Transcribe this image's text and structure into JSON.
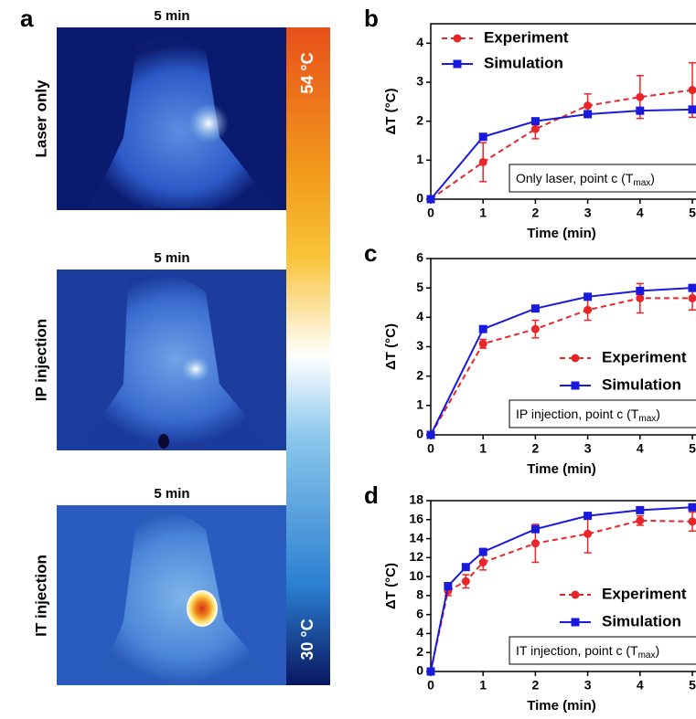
{
  "figure": {
    "panel": "a",
    "images": [
      {
        "time": "5 min",
        "label": "Laser only"
      },
      {
        "time": "5 min",
        "label": "IP injection"
      },
      {
        "time": "5 min",
        "label": "IT injection"
      }
    ],
    "colorbar": {
      "max": "54 °C",
      "min": "30 °C"
    }
  },
  "chart_data": [
    {
      "type": "line",
      "panel": "b",
      "xlabel": "Time (min)",
      "ylabel": "ΔT (°C)",
      "legend": "upper left",
      "annotation": {
        "text": "Only laser, point c (T",
        "sub": "max",
        "end": ")"
      },
      "x": [
        0,
        1,
        2,
        3,
        4,
        5
      ],
      "xlim": [
        0,
        5
      ],
      "xticks": [
        0,
        1,
        2,
        3,
        4,
        5
      ],
      "ylim": [
        0,
        4.5
      ],
      "yticks": [
        0,
        1,
        2,
        3,
        4
      ],
      "series": [
        {
          "name": "Experiment",
          "color": "#e8262a",
          "marker": "circle",
          "dashed": true,
          "values": [
            0,
            0.95,
            1.8,
            2.4,
            2.62,
            2.8
          ],
          "errors": [
            0,
            0.5,
            0.25,
            0.3,
            0.55,
            0.7
          ]
        },
        {
          "name": "Simulation",
          "color": "#1a1adc",
          "marker": "square",
          "dashed": false,
          "values": [
            0,
            1.6,
            2.0,
            2.18,
            2.27,
            2.3
          ]
        }
      ]
    },
    {
      "type": "line",
      "panel": "c",
      "xlabel": "Time (min)",
      "ylabel": "ΔT (°C)",
      "legend": "lower right",
      "annotation": {
        "text": "IP injection, point c (T",
        "sub": "max",
        "end": ")"
      },
      "x": [
        0,
        1,
        2,
        3,
        4,
        5
      ],
      "xlim": [
        0,
        5
      ],
      "xticks": [
        0,
        1,
        2,
        3,
        4,
        5
      ],
      "ylim": [
        0,
        6
      ],
      "yticks": [
        0,
        1,
        2,
        3,
        4,
        5,
        6
      ],
      "series": [
        {
          "name": "Experiment",
          "color": "#e8262a",
          "marker": "circle",
          "dashed": true,
          "values": [
            0,
            3.1,
            3.6,
            4.25,
            4.65,
            4.65
          ],
          "errors": [
            0,
            0.15,
            0.3,
            0.35,
            0.5,
            0.4
          ]
        },
        {
          "name": "Simulation",
          "color": "#1a1adc",
          "marker": "square",
          "dashed": false,
          "values": [
            0,
            3.6,
            4.3,
            4.7,
            4.9,
            5.0
          ]
        }
      ]
    },
    {
      "type": "line",
      "panel": "d",
      "xlabel": "Time (min)",
      "ylabel": "ΔT (°C)",
      "legend": "lower right",
      "annotation": {
        "text": "IT injection, point c (T",
        "sub": "max",
        "end": ")"
      },
      "x": [
        0,
        0.33,
        0.67,
        1,
        2,
        3,
        4,
        5
      ],
      "xlim": [
        0,
        5
      ],
      "xticks": [
        0,
        1,
        2,
        3,
        4,
        5
      ],
      "ylim": [
        0,
        18
      ],
      "yticks": [
        0,
        2,
        4,
        6,
        8,
        10,
        12,
        14,
        16,
        18
      ],
      "series": [
        {
          "name": "Experiment",
          "color": "#e8262a",
          "marker": "circle",
          "dashed": true,
          "values": [
            0,
            8.5,
            9.5,
            11.5,
            13.5,
            14.5,
            15.9,
            15.8
          ],
          "errors": [
            0,
            0.5,
            0.7,
            0.8,
            2,
            2,
            0.5,
            1
          ]
        },
        {
          "name": "Simulation",
          "color": "#1a1adc",
          "marker": "square",
          "dashed": false,
          "values": [
            0,
            9,
            11,
            12.6,
            15,
            16.4,
            17,
            17.3
          ]
        }
      ]
    }
  ]
}
